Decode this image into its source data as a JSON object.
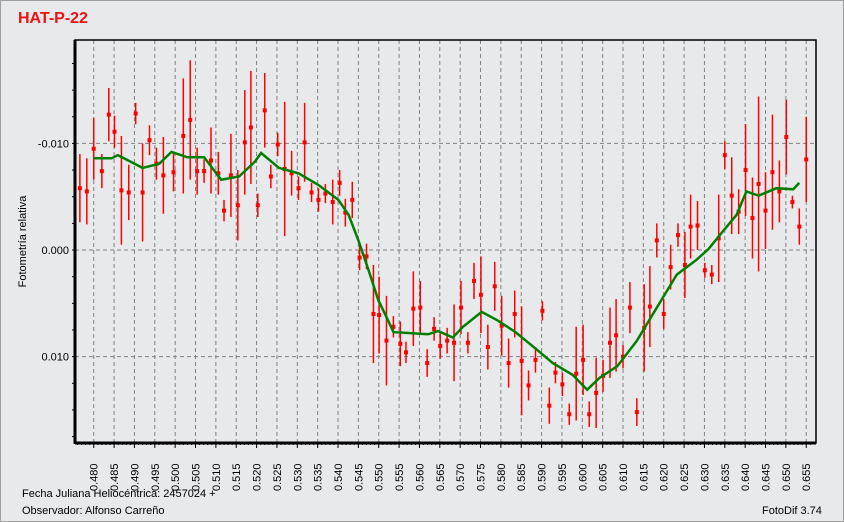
{
  "footer": {
    "x_caption": "Fecha Juliana Heliocéntrica: 2457024 +",
    "observer": "Observador: Alfonso Carreño",
    "software": "FotoDif 3.74"
  },
  "chart_data": {
    "type": "scatter",
    "title": "HAT-P-22",
    "xlabel": "Fecha Juliana Heliocéntrica: 2457024 +",
    "ylabel": "Fotometría relativa",
    "xlim": [
      0.4754,
      0.6574
    ],
    "ylim": [
      0.0181,
      -0.0197
    ],
    "y_inverted": true,
    "grid": true,
    "xticks": [
      "0.480",
      "0.485",
      "0.490",
      "0.495",
      "0.500",
      "0.505",
      "0.510",
      "0.515",
      "0.520",
      "0.525",
      "0.530",
      "0.535",
      "0.540",
      "0.545",
      "0.550",
      "0.555",
      "0.560",
      "0.565",
      "0.570",
      "0.575",
      "0.580",
      "0.585",
      "0.590",
      "0.595",
      "0.600",
      "0.605",
      "0.610",
      "0.615",
      "0.620",
      "0.625",
      "0.630",
      "0.635",
      "0.640",
      "0.645",
      "0.650",
      "0.655"
    ],
    "yticks": [
      "-0.010",
      "0.000",
      "0.010"
    ],
    "colors": {
      "points": "#ff0000",
      "fit": "#008000",
      "title": "#ee1111",
      "grid": "#808080"
    },
    "points": {
      "x": [
        0.4766,
        0.4783,
        0.48,
        0.482,
        0.4837,
        0.4851,
        0.4868,
        0.4886,
        0.4903,
        0.492,
        0.4937,
        0.4954,
        0.4971,
        0.4996,
        0.502,
        0.5037,
        0.5054,
        0.5071,
        0.5088,
        0.5106,
        0.512,
        0.5137,
        0.5154,
        0.5171,
        0.5186,
        0.5203,
        0.522,
        0.5235,
        0.5252,
        0.5269,
        0.5286,
        0.5303,
        0.5318,
        0.5335,
        0.5352,
        0.5369,
        0.5387,
        0.5404,
        0.5418,
        0.5435,
        0.5453,
        0.547,
        0.5487,
        0.5501,
        0.5519,
        0.5536,
        0.5553,
        0.5567,
        0.5585,
        0.5602,
        0.5619,
        0.5636,
        0.5651,
        0.5668,
        0.5685,
        0.5702,
        0.5719,
        0.5734,
        0.5751,
        0.5768,
        0.5785,
        0.5802,
        0.5819,
        0.5834,
        0.5851,
        0.5868,
        0.5885,
        0.5902,
        0.5919,
        0.5934,
        0.5951,
        0.5968,
        0.5985,
        0.6002,
        0.6017,
        0.6034,
        0.6051,
        0.6068,
        0.6083,
        0.61,
        0.6117,
        0.6134,
        0.6152,
        0.6166,
        0.6183,
        0.62,
        0.6217,
        0.6235,
        0.6252,
        0.6266,
        0.6283,
        0.6301,
        0.6318,
        0.6335,
        0.635,
        0.6367,
        0.6384,
        0.6401,
        0.6418,
        0.6433,
        0.645,
        0.6467,
        0.6484,
        0.6501,
        0.6516,
        0.6533,
        0.655
      ],
      "y": [
        -0.0058,
        -0.0055,
        -0.0095,
        -0.0074,
        -0.0127,
        -0.0111,
        -0.0056,
        -0.0054,
        -0.0128,
        -0.0054,
        -0.0103,
        -0.0081,
        -0.007,
        -0.0073,
        -0.0107,
        -0.0122,
        -0.0074,
        -0.0074,
        -0.0084,
        -0.0072,
        -0.0037,
        -0.007,
        -0.0042,
        -0.0101,
        -0.0115,
        -0.0042,
        -0.0131,
        -0.0069,
        -0.0099,
        -0.0076,
        -0.0072,
        -0.0058,
        -0.0101,
        -0.0054,
        -0.0047,
        -0.0053,
        -0.0045,
        -0.0063,
        -0.0035,
        -0.0047,
        0.0007,
        0.0006,
        0.006,
        0.0061,
        0.0085,
        0.0072,
        0.0088,
        0.0096,
        0.0055,
        0.0054,
        0.0106,
        0.0074,
        0.009,
        0.0085,
        0.0087,
        0.0054,
        0.0087,
        0.0029,
        0.0042,
        0.0091,
        0.0034,
        0.0071,
        0.0106,
        0.006,
        0.0104,
        0.0127,
        0.0103,
        0.0057,
        0.0146,
        0.0115,
        0.0126,
        0.0154,
        0.0116,
        0.0103,
        0.0154,
        0.0134,
        0.0118,
        0.0087,
        0.008,
        0.01,
        0.0054,
        0.0152,
        0.0073,
        0.0053,
        -0.0009,
        0.006,
        0.0016,
        -0.0014,
        0.0014,
        -0.0022,
        -0.0023,
        0.0019,
        0.0023,
        -0.0011,
        -0.0089,
        -0.0051,
        -0.0036,
        -0.0075,
        -0.003,
        -0.0062,
        -0.0037,
        -0.0073,
        -0.0055,
        -0.0106,
        -0.0045,
        -0.0022,
        -0.0085
      ],
      "err": [
        0.0032,
        0.0031,
        0.0029,
        0.0016,
        0.0025,
        0.0015,
        0.0051,
        0.0026,
        0.001,
        0.0046,
        0.0014,
        0.0015,
        0.0036,
        0.0018,
        0.0054,
        0.0056,
        0.0022,
        0.0011,
        0.0031,
        0.002,
        0.001,
        0.0039,
        0.0033,
        0.0049,
        0.0053,
        0.0011,
        0.0035,
        0.0011,
        0.0011,
        0.0063,
        0.0021,
        0.0011,
        0.0037,
        0.0009,
        0.0011,
        0.0009,
        0.0021,
        0.0012,
        0.0013,
        0.0017,
        0.0012,
        0.0012,
        0.0046,
        0.0036,
        0.0042,
        0.001,
        0.0021,
        0.001,
        0.0035,
        0.0025,
        0.0013,
        0.0011,
        0.0012,
        0.0012,
        0.0036,
        0.0025,
        0.001,
        0.0017,
        0.0036,
        0.0021,
        0.0023,
        0.0028,
        0.0023,
        0.0022,
        0.0051,
        0.0014,
        0.0012,
        0.0009,
        0.0017,
        0.001,
        0.0011,
        0.001,
        0.0044,
        0.0033,
        0.0012,
        0.0033,
        0.0015,
        0.0033,
        0.0034,
        0.0011,
        0.0024,
        0.0013,
        0.0041,
        0.0038,
        0.0016,
        0.0014,
        0.0021,
        0.0011,
        0.0031,
        0.003,
        0.0023,
        0.0007,
        0.0009,
        0.0041,
        0.0013,
        0.0036,
        0.0021,
        0.0043,
        0.0038,
        0.0082,
        0.0036,
        0.0054,
        0.0029,
        0.0035,
        0.0006,
        0.0017,
        0.004
      ]
    },
    "fit": {
      "x": [
        0.48,
        0.4844,
        0.4859,
        0.4895,
        0.492,
        0.4961,
        0.4991,
        0.503,
        0.5071,
        0.5113,
        0.5157,
        0.5196,
        0.5211,
        0.5255,
        0.5303,
        0.5352,
        0.5401,
        0.5426,
        0.545,
        0.5475,
        0.5499,
        0.5523,
        0.5536,
        0.5621,
        0.5646,
        0.5682,
        0.5707,
        0.5753,
        0.5792,
        0.5836,
        0.589,
        0.5927,
        0.5976,
        0.6012,
        0.6042,
        0.6086,
        0.6134,
        0.6183,
        0.6232,
        0.6281,
        0.631,
        0.6342,
        0.6379,
        0.6403,
        0.6433,
        0.6477,
        0.6518,
        0.6533
      ],
      "y": [
        -0.0086,
        -0.0086,
        -0.0089,
        -0.0082,
        -0.0077,
        -0.0081,
        -0.0092,
        -0.0087,
        -0.0087,
        -0.0066,
        -0.0069,
        -0.0083,
        -0.0091,
        -0.0077,
        -0.0072,
        -0.0061,
        -0.0047,
        -0.0033,
        -0.0009,
        0.0019,
        0.0047,
        0.0066,
        0.0077,
        0.0079,
        0.0076,
        0.0082,
        0.0072,
        0.0058,
        0.0066,
        0.0077,
        0.0094,
        0.0106,
        0.0117,
        0.0131,
        0.012,
        0.0109,
        0.0085,
        0.0054,
        0.0023,
        0.0009,
        -0.0001,
        -0.0016,
        -0.0033,
        -0.0055,
        -0.0051,
        -0.0058,
        -0.0057,
        -0.0063
      ]
    }
  }
}
